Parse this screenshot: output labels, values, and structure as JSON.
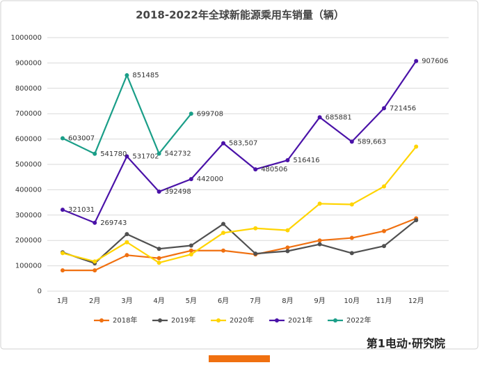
{
  "chart_data": {
    "type": "line",
    "title": "2018-2022年全球新能源乘用车销量（辆）",
    "categories": [
      "1月",
      "2月",
      "3月",
      "4月",
      "5月",
      "6月",
      "7月",
      "8月",
      "9月",
      "10月",
      "11月",
      "12月"
    ],
    "series": [
      {
        "name": "2018年",
        "color": "#f07010",
        "values": [
          82000,
          82000,
          142000,
          130000,
          160000,
          160000,
          145000,
          172000,
          200000,
          210000,
          237000,
          287000
        ]
      },
      {
        "name": "2019年",
        "color": "#505050",
        "values": [
          153000,
          110000,
          225000,
          167000,
          180000,
          265000,
          148000,
          158000,
          185000,
          150000,
          178000,
          280000
        ]
      },
      {
        "name": "2020年",
        "color": "#ffd400",
        "values": [
          150000,
          117000,
          193000,
          112000,
          145000,
          230000,
          248000,
          240000,
          345000,
          342000,
          413000,
          570000
        ]
      },
      {
        "name": "2021年",
        "color": "#4a12a8",
        "values": [
          321031,
          269743,
          531702,
          392498,
          442000,
          583507,
          480506,
          516416,
          685881,
          589663,
          721456,
          907606
        ],
        "value_labels": [
          "321031",
          "269743",
          "531702",
          "392498",
          "442000",
          "583,507",
          "480506",
          "516416",
          "685881",
          "589,663",
          "721456",
          "907606"
        ]
      },
      {
        "name": "2022年",
        "color": "#1a9e88",
        "values": [
          603007,
          541780,
          851485,
          542732,
          699708,
          null,
          null,
          null,
          null,
          null,
          null,
          null
        ],
        "value_labels": [
          "603007",
          "541780",
          "851485",
          "542732",
          "699708",
          null,
          null,
          null,
          null,
          null,
          null,
          null
        ]
      }
    ],
    "ylim": [
      0,
      1000000
    ],
    "yticks": [
      0,
      100000,
      200000,
      300000,
      400000,
      500000,
      600000,
      700000,
      800000,
      900000,
      1000000
    ],
    "grid": true,
    "legend": "bottom",
    "footer": "第1电动·研究院"
  }
}
